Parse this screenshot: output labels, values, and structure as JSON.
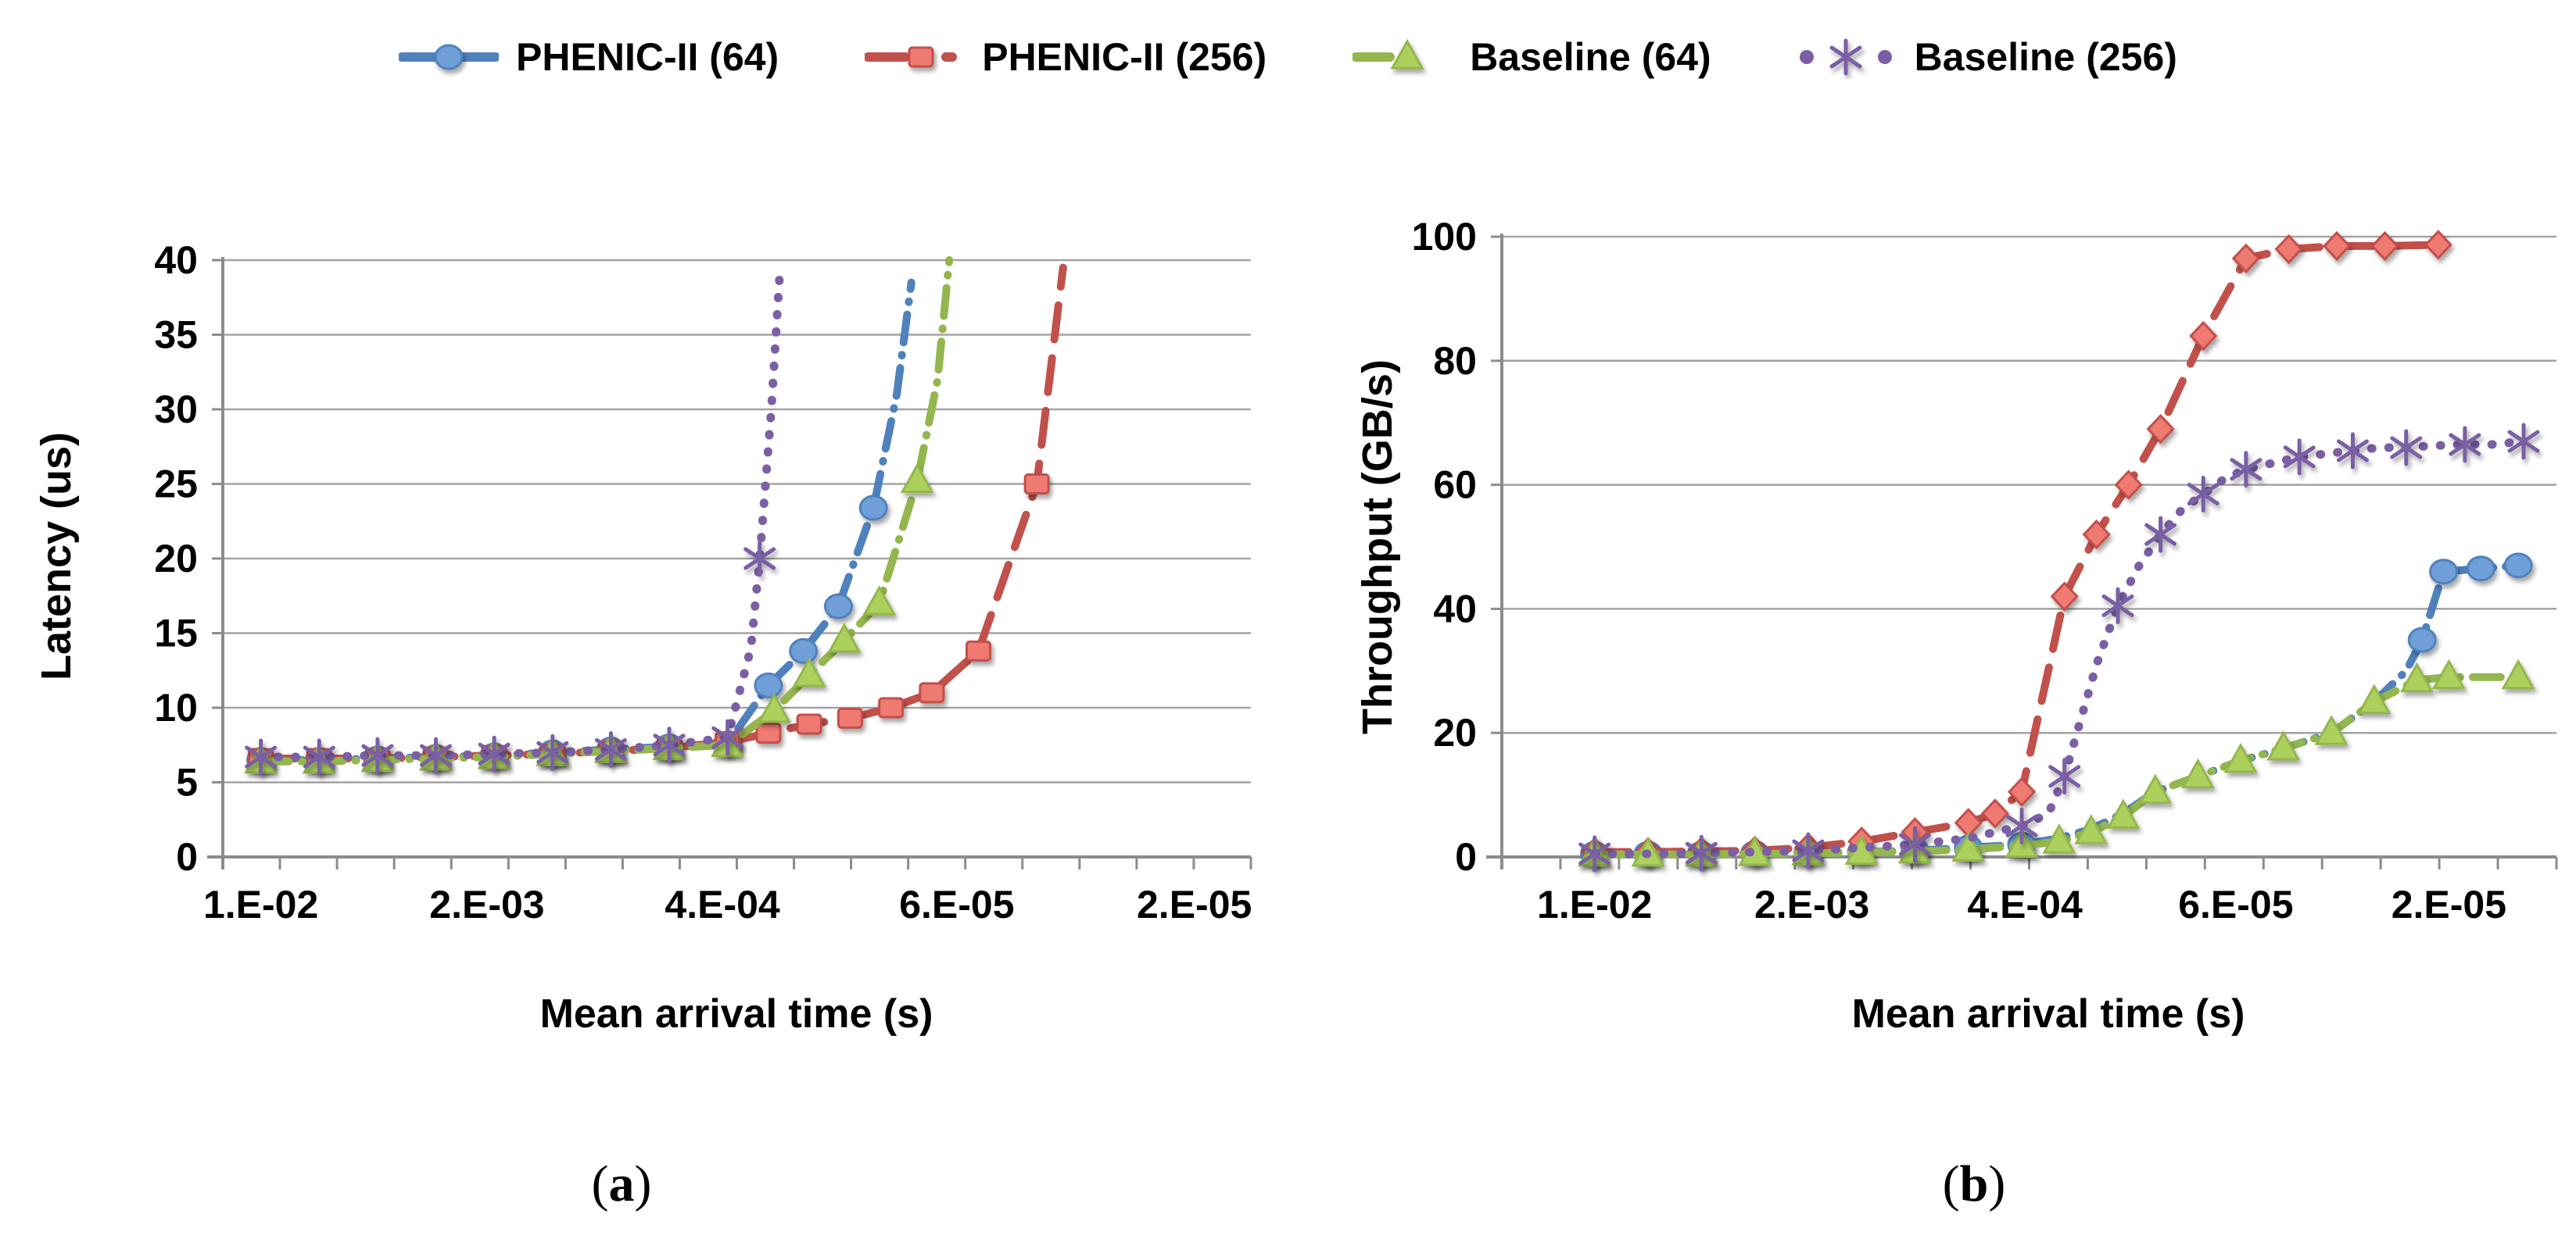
{
  "legend": {
    "items": [
      {
        "label": "PHENIC-II (64)",
        "marker": "circle",
        "color": "#4f81bd",
        "fill": "#6f9fd8"
      },
      {
        "label": "PHENIC-II (256)",
        "marker": "square",
        "color": "#c2504b",
        "fill": "#ee7a72"
      },
      {
        "label": "Baseline (64)",
        "marker": "triangle",
        "color": "#94b64e",
        "fill": "#abd15c"
      },
      {
        "label": "Baseline (256)",
        "marker": "asterisk",
        "color": "#7a5fa5",
        "fill": "#7a5fa5"
      }
    ]
  },
  "captions": {
    "a": "(a)",
    "b": "(b)"
  },
  "colors": {
    "grid": "#a3a3a3",
    "axis": "#8c8c8c",
    "text": "#000000"
  },
  "chart_data": [
    {
      "id": "a",
      "type": "line",
      "xlabel": "Mean arrival time (s)",
      "ylabel": "Latency (us)",
      "ylim": [
        0,
        40
      ],
      "ytick_step": 5,
      "x_tick_labels": [
        "1.E-02",
        "2.E-03",
        "4.E-04",
        "6.E-05",
        "2.E-05"
      ],
      "x_axis_note": "category axis, 18 minor intervals, labels every 4th category",
      "grid": true,
      "legend_position": "top",
      "series": [
        {
          "name": "PHENIC-II (64)",
          "color": "#4f81bd",
          "fill": "#6f9fd8",
          "marker": "circle",
          "style": "dash-dot",
          "points": [
            [
              1,
              6.5,
              1
            ],
            [
              2,
              6.5,
              1
            ],
            [
              3,
              6.6,
              1
            ],
            [
              4,
              6.7,
              1
            ],
            [
              5,
              6.8,
              1
            ],
            [
              6,
              7.0,
              1
            ],
            [
              7,
              7.2,
              1
            ],
            [
              8,
              7.4,
              1
            ],
            [
              9,
              7.6,
              1
            ],
            [
              9.7,
              11.5,
              1
            ],
            [
              10.3,
              13.8,
              1
            ],
            [
              10.9,
              16.8,
              1
            ],
            [
              11.5,
              23.4,
              1
            ],
            [
              11.9,
              31,
              0
            ],
            [
              12.15,
              38.5,
              0
            ]
          ]
        },
        {
          "name": "PHENIC-II (256)",
          "color": "#c2504b",
          "fill": "#ee7a72",
          "marker": "square",
          "style": "long-dash",
          "points": [
            [
              1,
              6.6,
              1
            ],
            [
              2,
              6.6,
              1
            ],
            [
              3,
              6.6,
              1
            ],
            [
              4,
              6.7,
              1
            ],
            [
              5,
              6.8,
              1
            ],
            [
              6,
              6.9,
              1
            ],
            [
              7,
              7.1,
              1
            ],
            [
              8,
              7.3,
              1
            ],
            [
              9,
              7.7,
              1
            ],
            [
              9.7,
              8.3,
              1
            ],
            [
              10.4,
              8.9,
              1
            ],
            [
              11.1,
              9.3,
              1
            ],
            [
              11.8,
              10.0,
              1
            ],
            [
              12.5,
              11.0,
              1
            ],
            [
              13.3,
              13.8,
              1
            ],
            [
              14.3,
              25,
              1
            ],
            [
              14.75,
              39.5,
              0
            ]
          ]
        },
        {
          "name": "Baseline (64)",
          "color": "#94b64e",
          "fill": "#abd15c",
          "marker": "triangle",
          "style": "dash-dot",
          "points": [
            [
              1,
              6.4,
              1
            ],
            [
              2,
              6.4,
              1
            ],
            [
              3,
              6.5,
              1
            ],
            [
              4,
              6.6,
              1
            ],
            [
              5,
              6.7,
              1
            ],
            [
              6,
              6.9,
              1
            ],
            [
              7,
              7.1,
              1
            ],
            [
              8,
              7.3,
              1
            ],
            [
              9,
              7.5,
              1
            ],
            [
              9.8,
              9.8,
              1
            ],
            [
              10.4,
              12.2,
              1
            ],
            [
              11.0,
              14.5,
              1
            ],
            [
              11.6,
              17.0,
              1
            ],
            [
              12.25,
              25.2,
              1
            ],
            [
              12.6,
              32,
              0
            ],
            [
              12.8,
              40,
              0
            ]
          ]
        },
        {
          "name": "Baseline (256)",
          "color": "#7a5fa5",
          "fill": "#7a5fa5",
          "marker": "asterisk",
          "style": "dotted",
          "points": [
            [
              1,
              6.7,
              1
            ],
            [
              2,
              6.7,
              1
            ],
            [
              3,
              6.8,
              1
            ],
            [
              4,
              6.8,
              1
            ],
            [
              5,
              6.9,
              1
            ],
            [
              6,
              7.0,
              1
            ],
            [
              7,
              7.2,
              1
            ],
            [
              8,
              7.5,
              1
            ],
            [
              9,
              8.0,
              1
            ],
            [
              9.4,
              14,
              0
            ],
            [
              9.55,
              20,
              1
            ],
            [
              9.75,
              30,
              0
            ],
            [
              9.9,
              39.5,
              0
            ]
          ]
        }
      ]
    },
    {
      "id": "b",
      "type": "line",
      "xlabel": "Mean arrival time (s)",
      "ylabel": "Throughput (GB/s)",
      "ylim": [
        0,
        100
      ],
      "ytick_step": 20,
      "x_tick_labels": [
        "1.E-02",
        "2.E-03",
        "4.E-04",
        "6.E-05",
        "2.E-05"
      ],
      "x_axis_note": "category axis, 18 minor intervals, labels every 4th category",
      "grid": true,
      "legend_position": "top",
      "series": [
        {
          "name": "PHENIC-II (64)",
          "color": "#4f81bd",
          "fill": "#6f9fd8",
          "marker": "circle",
          "style": "dash-dot",
          "points": [
            [
              1,
              0.5,
              1
            ],
            [
              2,
              0.5,
              1
            ],
            [
              3,
              0.5,
              1
            ],
            [
              4,
              0.6,
              1
            ],
            [
              5,
              0.7,
              1
            ],
            [
              6,
              0.8,
              1
            ],
            [
              7,
              1,
              1
            ],
            [
              8,
              1.5,
              1
            ],
            [
              9,
              2,
              1
            ],
            [
              9.7,
              3,
              0
            ],
            [
              10.3,
              4.5,
              0
            ],
            [
              10.9,
              7,
              0
            ],
            [
              11.5,
              10.5,
              0
            ],
            [
              12.3,
              13,
              0
            ],
            [
              13.1,
              15.5,
              0
            ],
            [
              13.9,
              17.5,
              0
            ],
            [
              14.8,
              20,
              0
            ],
            [
              15.6,
              25,
              0
            ],
            [
              16.2,
              30,
              0
            ],
            [
              16.5,
              35,
              1
            ],
            [
              16.9,
              46,
              1
            ],
            [
              17.6,
              46.5,
              1
            ],
            [
              18.3,
              47,
              1
            ]
          ]
        },
        {
          "name": "PHENIC-II (256)",
          "color": "#c2504b",
          "fill": "#ee7a72",
          "marker": "diamond",
          "style": "long-dash",
          "points": [
            [
              1,
              0.8,
              1
            ],
            [
              2,
              0.8,
              1
            ],
            [
              3,
              0.9,
              1
            ],
            [
              4,
              1.0,
              1
            ],
            [
              5,
              1.5,
              1
            ],
            [
              6,
              2.5,
              1
            ],
            [
              7,
              4,
              1
            ],
            [
              8,
              5.5,
              1
            ],
            [
              8.5,
              7,
              1
            ],
            [
              9,
              10.5,
              1
            ],
            [
              9.8,
              42,
              1
            ],
            [
              10.4,
              52,
              1
            ],
            [
              11.0,
              60,
              1
            ],
            [
              11.6,
              69,
              1
            ],
            [
              12.4,
              84,
              1
            ],
            [
              13.2,
              96.5,
              1
            ],
            [
              14.0,
              98,
              1
            ],
            [
              14.9,
              98.5,
              1
            ],
            [
              15.8,
              98.5,
              1
            ],
            [
              16.8,
              98.7,
              1
            ]
          ]
        },
        {
          "name": "Baseline (64)",
          "color": "#94b64e",
          "fill": "#abd15c",
          "marker": "triangle",
          "style": "dash-dot",
          "points": [
            [
              1,
              0.4,
              1
            ],
            [
              2,
              0.4,
              1
            ],
            [
              3,
              0.4,
              1
            ],
            [
              4,
              0.5,
              1
            ],
            [
              5,
              0.6,
              1
            ],
            [
              6,
              0.7,
              1
            ],
            [
              7,
              0.9,
              1
            ],
            [
              8,
              1.2,
              1
            ],
            [
              9,
              1.8,
              1
            ],
            [
              9.7,
              2.5,
              1
            ],
            [
              10.3,
              4,
              1
            ],
            [
              10.9,
              6.5,
              1
            ],
            [
              11.5,
              10.5,
              1
            ],
            [
              12.3,
              13,
              1
            ],
            [
              13.1,
              15.5,
              1
            ],
            [
              13.9,
              17.5,
              1
            ],
            [
              14.8,
              20,
              1
            ],
            [
              15.6,
              25,
              1
            ],
            [
              16.4,
              28.5,
              1
            ],
            [
              17.0,
              29,
              1
            ],
            [
              17.6,
              29,
              0
            ],
            [
              18.3,
              29,
              1
            ]
          ]
        },
        {
          "name": "Baseline (256)",
          "color": "#7a5fa5",
          "fill": "#7a5fa5",
          "marker": "asterisk",
          "style": "dotted",
          "points": [
            [
              1,
              0.5,
              1
            ],
            [
              2,
              0.5,
              0
            ],
            [
              3,
              0.6,
              1
            ],
            [
              4,
              0.8,
              0
            ],
            [
              5,
              1,
              1
            ],
            [
              6,
              1.5,
              0
            ],
            [
              7,
              2,
              1
            ],
            [
              8,
              3,
              0
            ],
            [
              9,
              5,
              1
            ],
            [
              9.5,
              7,
              0
            ],
            [
              9.8,
              13,
              1
            ],
            [
              10.1,
              22,
              0
            ],
            [
              10.4,
              31,
              0
            ],
            [
              10.8,
              40.5,
              1
            ],
            [
              11.2,
              47,
              0
            ],
            [
              11.6,
              52,
              1
            ],
            [
              12.0,
              56,
              0
            ],
            [
              12.4,
              58.5,
              1
            ],
            [
              12.8,
              61,
              0
            ],
            [
              13.2,
              62.5,
              1
            ],
            [
              13.7,
              63.5,
              0
            ],
            [
              14.2,
              64.5,
              1
            ],
            [
              14.7,
              65,
              0
            ],
            [
              15.2,
              65.5,
              1
            ],
            [
              15.7,
              66,
              0
            ],
            [
              16.2,
              66,
              1
            ],
            [
              16.7,
              66.3,
              0
            ],
            [
              17.3,
              66.5,
              1
            ],
            [
              17.8,
              66.5,
              0
            ],
            [
              18.4,
              67,
              1
            ]
          ]
        }
      ]
    }
  ]
}
